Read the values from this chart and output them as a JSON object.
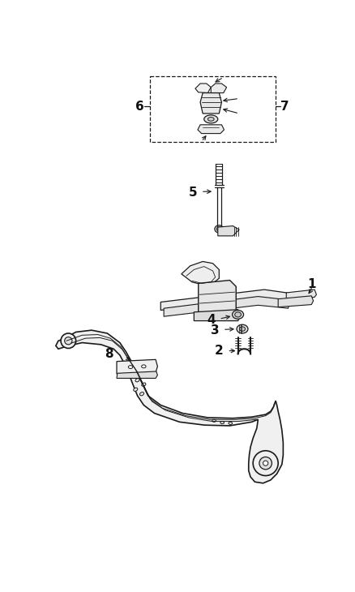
{
  "bg_color": "#ffffff",
  "lc": "#1a1a1a",
  "figsize": [
    4.39,
    7.3
  ],
  "dpi": 100,
  "label_fs": 11
}
